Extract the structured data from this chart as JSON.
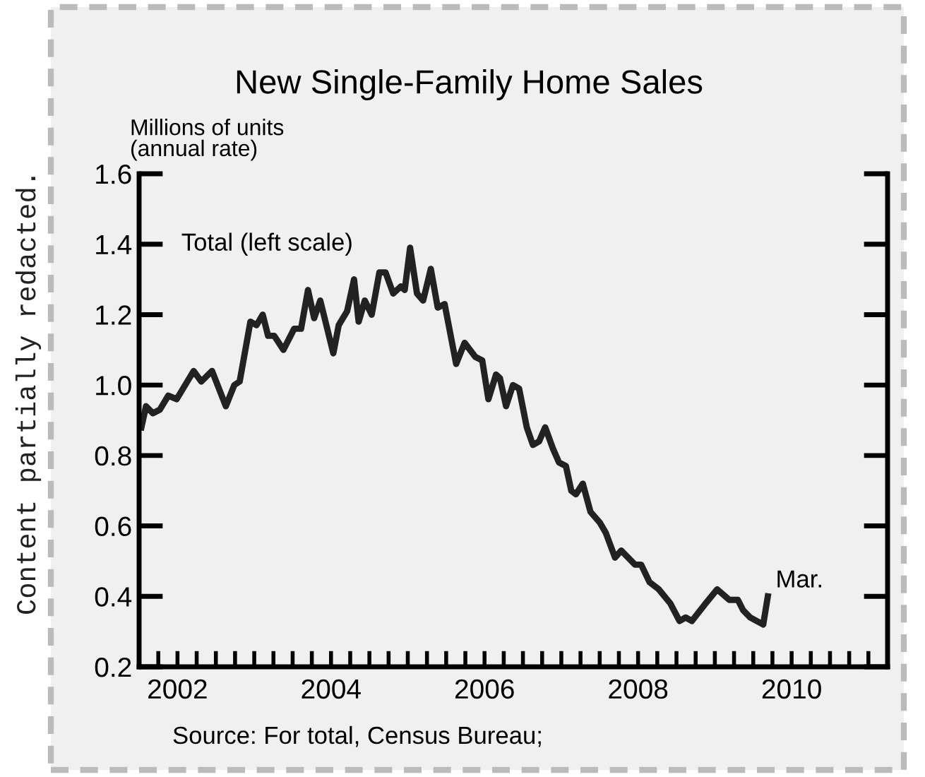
{
  "chart_data": {
    "type": "line",
    "title": "New Single-Family Home Sales",
    "ylabel": "Millions of units\n(annual rate)",
    "x": [
      2002.03,
      2002.09,
      2002.18,
      2002.27,
      2002.38,
      2002.49,
      2002.71,
      2002.81,
      2002.95,
      2003.13,
      2003.24,
      2003.31,
      2003.45,
      2003.53,
      2003.61,
      2003.68,
      2003.76,
      2003.88,
      2004.02,
      2004.11,
      2004.2,
      2004.28,
      2004.36,
      2004.53,
      2004.6,
      2004.71,
      2004.8,
      2004.86,
      2004.94,
      2005.03,
      2005.13,
      2005.21,
      2005.31,
      2005.41,
      2005.46,
      2005.53,
      2005.62,
      2005.7,
      2005.8,
      2005.89,
      2005.98,
      2006.13,
      2006.24,
      2006.38,
      2006.47,
      2006.55,
      2006.65,
      2006.7,
      2006.78,
      2006.87,
      2006.95,
      2007.05,
      2007.13,
      2007.21,
      2007.29,
      2007.39,
      2007.47,
      2007.56,
      2007.63,
      2007.69,
      2007.78,
      2007.88,
      2008.0,
      2008.08,
      2008.2,
      2008.28,
      2008.37,
      2008.46,
      2008.54,
      2008.65,
      2008.77,
      2008.92,
      2009.04,
      2009.12,
      2009.2,
      2009.38,
      2009.53,
      2009.69,
      2009.8,
      2009.87,
      2009.96,
      2010.13,
      2010.19
    ],
    "series": [
      {
        "name": "Total (left scale)",
        "color": "#222222",
        "values": [
          0.88,
          0.94,
          0.92,
          0.93,
          0.97,
          0.96,
          1.04,
          1.01,
          1.04,
          0.94,
          1.0,
          1.01,
          1.18,
          1.17,
          1.2,
          1.14,
          1.14,
          1.1,
          1.16,
          1.16,
          1.27,
          1.19,
          1.24,
          1.09,
          1.17,
          1.21,
          1.3,
          1.18,
          1.24,
          1.2,
          1.32,
          1.32,
          1.26,
          1.28,
          1.27,
          1.39,
          1.26,
          1.24,
          1.33,
          1.22,
          1.23,
          1.06,
          1.12,
          1.08,
          1.07,
          0.96,
          1.03,
          1.02,
          0.94,
          1.0,
          0.99,
          0.88,
          0.83,
          0.84,
          0.88,
          0.82,
          0.78,
          0.77,
          0.7,
          0.69,
          0.72,
          0.64,
          0.61,
          0.58,
          0.51,
          0.53,
          0.51,
          0.49,
          0.49,
          0.44,
          0.42,
          0.38,
          0.33,
          0.34,
          0.33,
          0.38,
          0.42,
          0.39,
          0.39,
          0.36,
          0.34,
          0.32,
          0.4
        ]
      }
    ],
    "xlim": [
      2002,
      2011.75
    ],
    "xticks": [
      {
        "value": 2002.25,
        "label": null
      },
      {
        "value": 2002.5,
        "label": "2002"
      },
      {
        "value": 2002.75,
        "label": null
      },
      {
        "value": 2003,
        "label": null
      },
      {
        "value": 2003.25,
        "label": null
      },
      {
        "value": 2003.5,
        "label": null
      },
      {
        "value": 2003.75,
        "label": null
      },
      {
        "value": 2004,
        "label": null
      },
      {
        "value": 2004.25,
        "label": null
      },
      {
        "value": 2004.5,
        "label": "2004"
      },
      {
        "value": 2004.75,
        "label": null
      },
      {
        "value": 2005,
        "label": null
      },
      {
        "value": 2005.25,
        "label": null
      },
      {
        "value": 2005.5,
        "label": null
      },
      {
        "value": 2005.75,
        "label": null
      },
      {
        "value": 2006,
        "label": null
      },
      {
        "value": 2006.25,
        "label": null
      },
      {
        "value": 2006.5,
        "label": "2006"
      },
      {
        "value": 2006.75,
        "label": null
      },
      {
        "value": 2007,
        "label": null
      },
      {
        "value": 2007.25,
        "label": null
      },
      {
        "value": 2007.5,
        "label": null
      },
      {
        "value": 2007.75,
        "label": null
      },
      {
        "value": 2008,
        "label": null
      },
      {
        "value": 2008.25,
        "label": null
      },
      {
        "value": 2008.5,
        "label": "2008"
      },
      {
        "value": 2008.75,
        "label": null
      },
      {
        "value": 2009,
        "label": null
      },
      {
        "value": 2009.25,
        "label": null
      },
      {
        "value": 2009.5,
        "label": null
      },
      {
        "value": 2009.75,
        "label": null
      },
      {
        "value": 2010,
        "label": null
      },
      {
        "value": 2010.25,
        "label": null
      },
      {
        "value": 2010.5,
        "label": "2010"
      },
      {
        "value": 2010.75,
        "label": null
      },
      {
        "value": 2011,
        "label": null
      },
      {
        "value": 2011.25,
        "label": null
      },
      {
        "value": 2011.5,
        "label": null
      }
    ],
    "ylim": [
      0.2,
      1.6
    ],
    "yticks": [
      0.2,
      0.4,
      0.6,
      0.8,
      {
        "value": 1,
        "label": "1.0"
      },
      1.2,
      1.4,
      1.6
    ],
    "grid": false,
    "legend": false,
    "marker": "none",
    "line_style": "solid",
    "annotations": [
      {
        "text": "Mar.",
        "x": 2010.19,
        "y": 0.4
      },
      "Source: For total, Census Bureau;",
      "Content partially redacted."
    ]
  }
}
